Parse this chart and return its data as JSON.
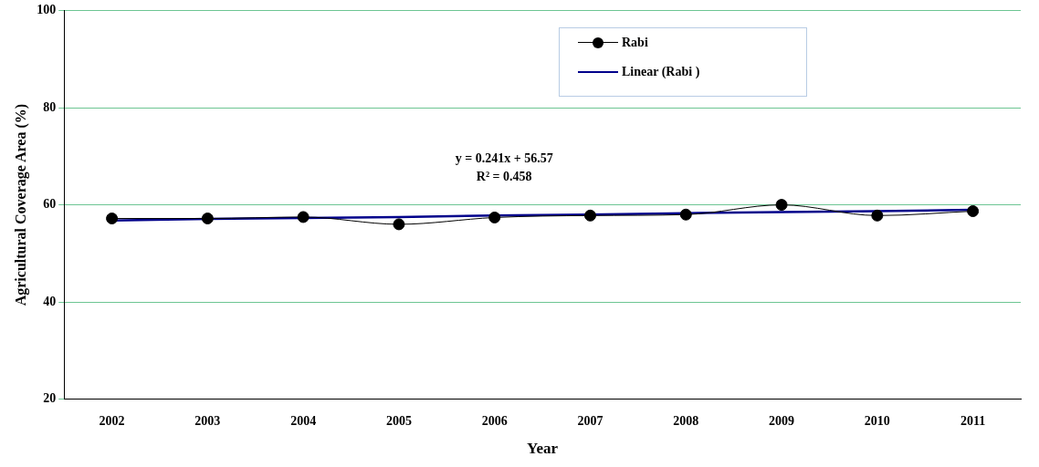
{
  "chart_data": {
    "type": "line",
    "xlabel": "Year",
    "ylabel": "Agricultural Coverage Area (%)",
    "categories": [
      "2002",
      "2003",
      "2004",
      "2005",
      "2006",
      "2007",
      "2008",
      "2009",
      "2010",
      "2011"
    ],
    "series": [
      {
        "name": "Rabi",
        "color": "#000000",
        "marker": "circle",
        "values": [
          57.2,
          57.2,
          57.5,
          56.0,
          57.4,
          57.8,
          58.0,
          60.0,
          57.8,
          58.7
        ]
      },
      {
        "name": "Linear (Rabi )",
        "color": "#00008b",
        "marker": "none",
        "values": [
          56.8,
          57.1,
          57.3,
          57.5,
          57.8,
          58.0,
          58.3,
          58.5,
          58.7,
          59.0
        ]
      }
    ],
    "ylim": [
      20,
      100
    ],
    "yticks": [
      20,
      40,
      60,
      80,
      100
    ],
    "grid": "y",
    "legend": "top",
    "annotations": [
      "y = 0.241x + 56.57",
      "R² = 0.458"
    ]
  }
}
